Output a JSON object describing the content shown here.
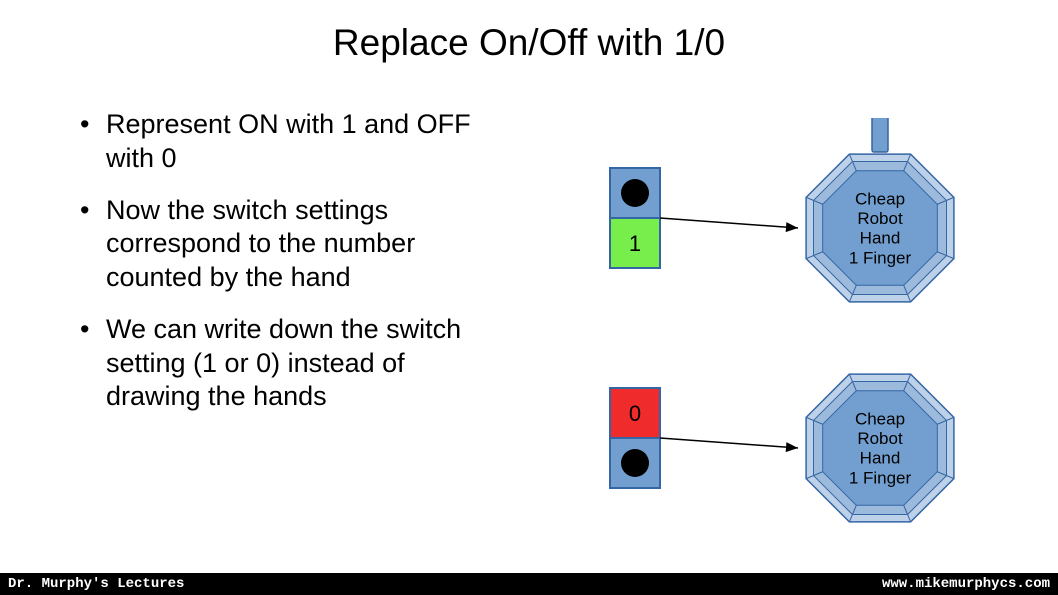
{
  "title": "Replace On/Off with 1/0",
  "bullets": [
    "Represent ON with 1 and OFF with 0",
    "Now the switch settings correspond to the number counted by the hand",
    "We can write down the switch setting (1 or 0) instead of drawing the hands"
  ],
  "diagrams": {
    "switch_on_label": "1",
    "switch_off_label": "0",
    "panel_fill": "#729fcf",
    "panel_stroke": "#3465a4",
    "on_fill": "#77ee4b",
    "off_fill": "#ef2b2b",
    "button_fill": "#000000",
    "arrow_color": "#000000",
    "octagon_fill_light": "#bdd2e8",
    "octagon_fill_mid": "#9cbadb",
    "octagon_fill_core": "#729fcf",
    "octagon_stroke": "#3465a4",
    "hand_lines": [
      "Cheap",
      "Robot",
      "Hand",
      "1 Finger"
    ],
    "text_color": "#000000",
    "label_fontsize": 22,
    "hand_fontsize": 17
  },
  "footer": {
    "left": "Dr. Murphy's Lectures",
    "right": "www.mikemurphycs.com"
  }
}
